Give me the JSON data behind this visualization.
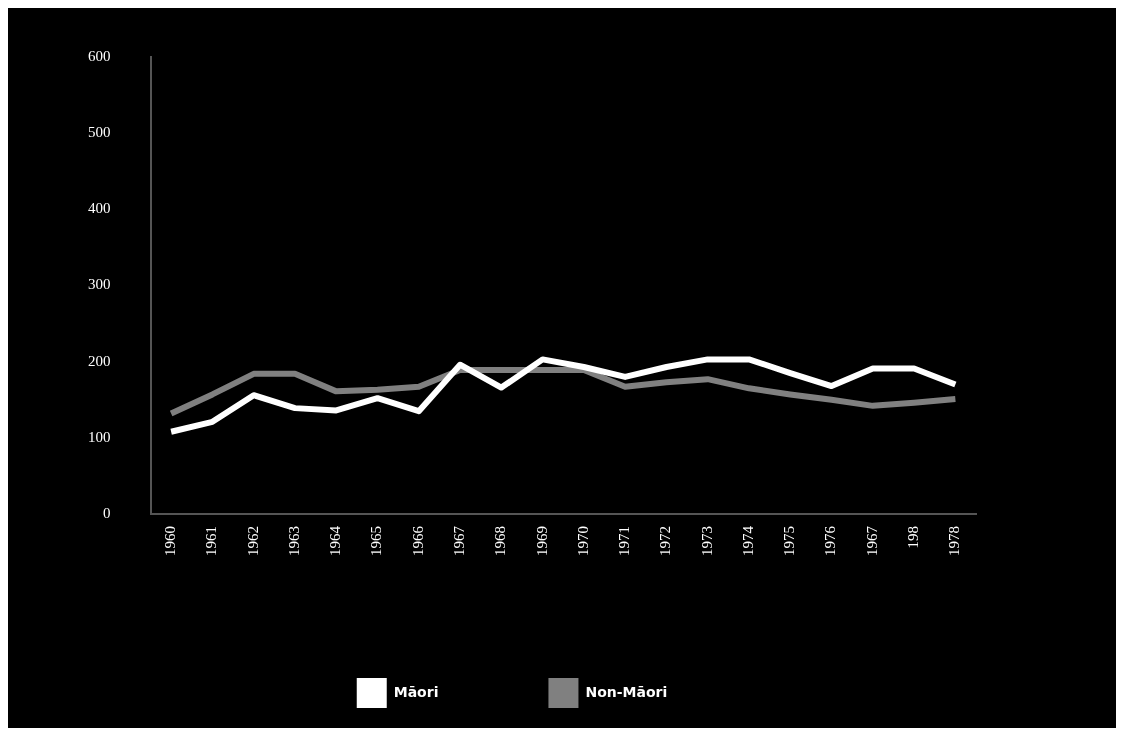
{
  "chart_data": {
    "type": "line",
    "categories": [
      "1960",
      "1961",
      "1962",
      "1963",
      "1964",
      "1965",
      "1966",
      "1967",
      "1968",
      "1969",
      "1970",
      "1971",
      "1972",
      "1973",
      "1974",
      "1975",
      "1976",
      "1967",
      "198",
      "1978"
    ],
    "series": [
      {
        "name": "Māori",
        "color": "#ffffff",
        "values": [
          108,
          121,
          156,
          139,
          136,
          152,
          135,
          196,
          166,
          203,
          193,
          180,
          193,
          203,
          203,
          185,
          168,
          191,
          191,
          170
        ]
      },
      {
        "name": "Non-Māori",
        "color": "#808080",
        "values": [
          132,
          157,
          184,
          184,
          161,
          163,
          167,
          189,
          189,
          189,
          189,
          167,
          173,
          177,
          165,
          157,
          150,
          142,
          146,
          151
        ]
      }
    ],
    "ylim": [
      0,
      600
    ],
    "yticks": [
      0,
      100,
      200,
      300,
      400,
      500,
      600
    ],
    "grid": false,
    "legend": "bottom",
    "marker": "none",
    "line_style": "solid"
  }
}
